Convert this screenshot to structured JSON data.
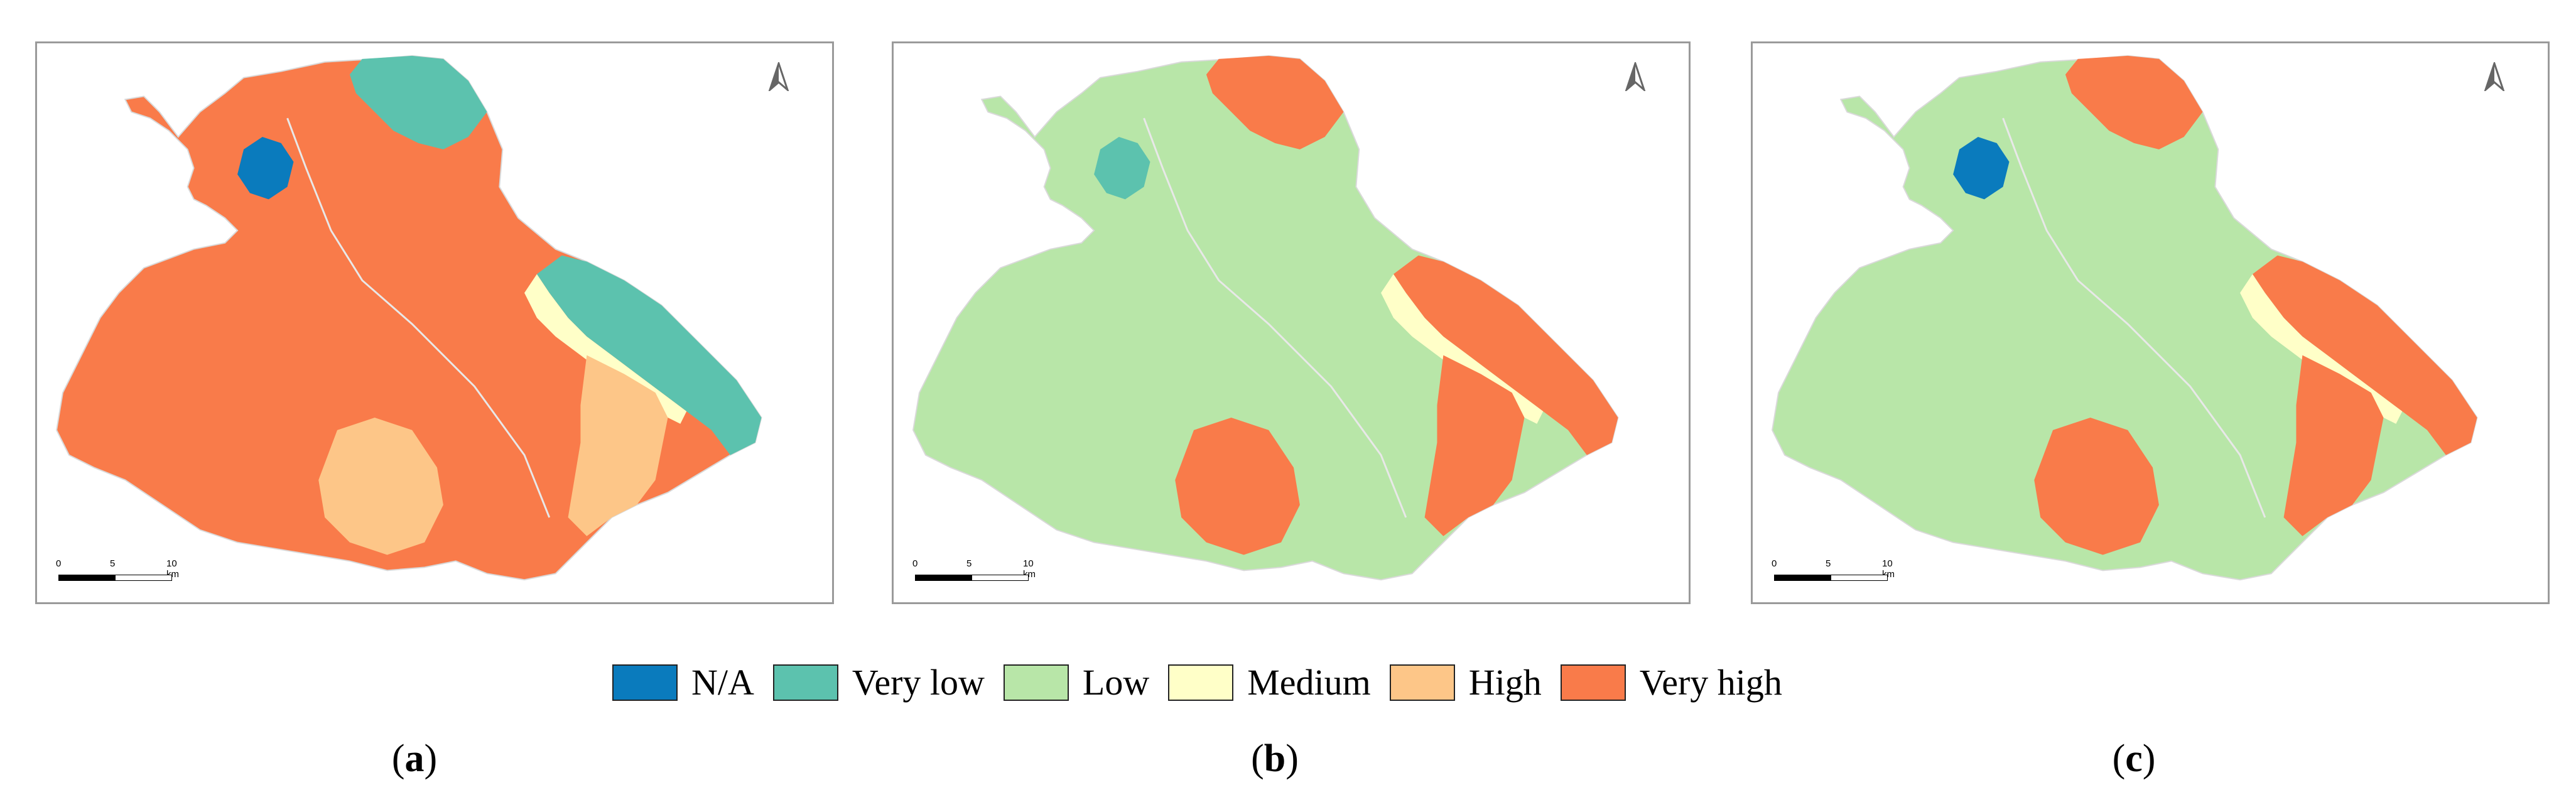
{
  "panels": [
    {
      "caption": "a",
      "scale_labels": {
        "zero": "0",
        "mid": "5",
        "end": "10 km"
      },
      "zones": {
        "land": "Very high",
        "north": "Very low",
        "east": "Very low",
        "band": "Medium",
        "southeast": "High",
        "south": "High",
        "lake": "N/A"
      }
    },
    {
      "caption": "b",
      "scale_labels": {
        "zero": "0",
        "mid": "5",
        "end": "10 km"
      },
      "zones": {
        "land": "Low",
        "north": "Very high",
        "east": "Very high",
        "band": "Medium",
        "southeast": "Very high",
        "south": "Very high",
        "lake": "Very low"
      }
    },
    {
      "caption": "c",
      "scale_labels": {
        "zero": "0",
        "mid": "5",
        "end": "10 km"
      },
      "zones": {
        "land": "Low",
        "north": "Very high",
        "east": "Very high",
        "band": "Medium",
        "southeast": "Very high",
        "south": "Very high",
        "lake": "N/A"
      }
    }
  ],
  "legend": [
    {
      "label": "N/A",
      "color": "#0a7bbd"
    },
    {
      "label": "Very low",
      "color": "#5cc2ae"
    },
    {
      "label": "Low",
      "color": "#b8e6a8"
    },
    {
      "label": "Medium",
      "color": "#ffffc8"
    },
    {
      "label": "High",
      "color": "#fdc688"
    },
    {
      "label": "Very high",
      "color": "#f97b4a"
    }
  ],
  "north_arrow": "north-arrow-icon"
}
